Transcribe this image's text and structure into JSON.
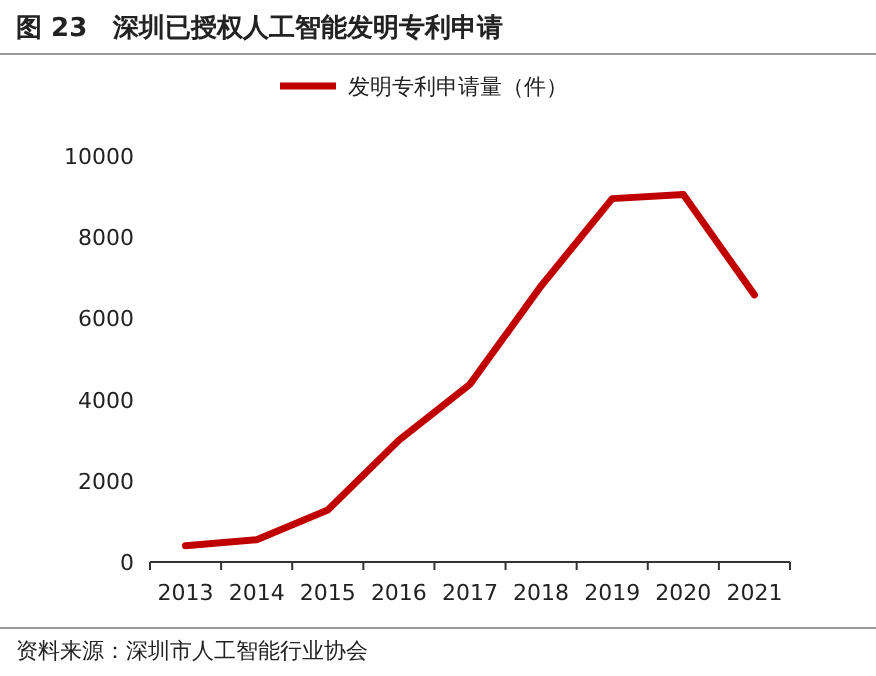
{
  "chart_data": {
    "type": "line",
    "title": "图 23　深圳已授权人工智能发明专利申请",
    "annotations": [
      "资料来源：深圳市人工智能行业协会"
    ],
    "categories": [
      "2013",
      "2014",
      "2015",
      "2016",
      "2017",
      "2018",
      "2019",
      "2020",
      "2021"
    ],
    "series": [
      {
        "name": "发明专利申请量（件）",
        "color": "#c00000",
        "values": [
          400,
          550,
          1280,
          3000,
          4380,
          6800,
          8950,
          9050,
          6580
        ]
      }
    ],
    "ylim": [
      0,
      10000
    ],
    "yticks": [
      0,
      2000,
      4000,
      6000,
      8000,
      10000
    ],
    "legend": "top",
    "grid": false
  }
}
